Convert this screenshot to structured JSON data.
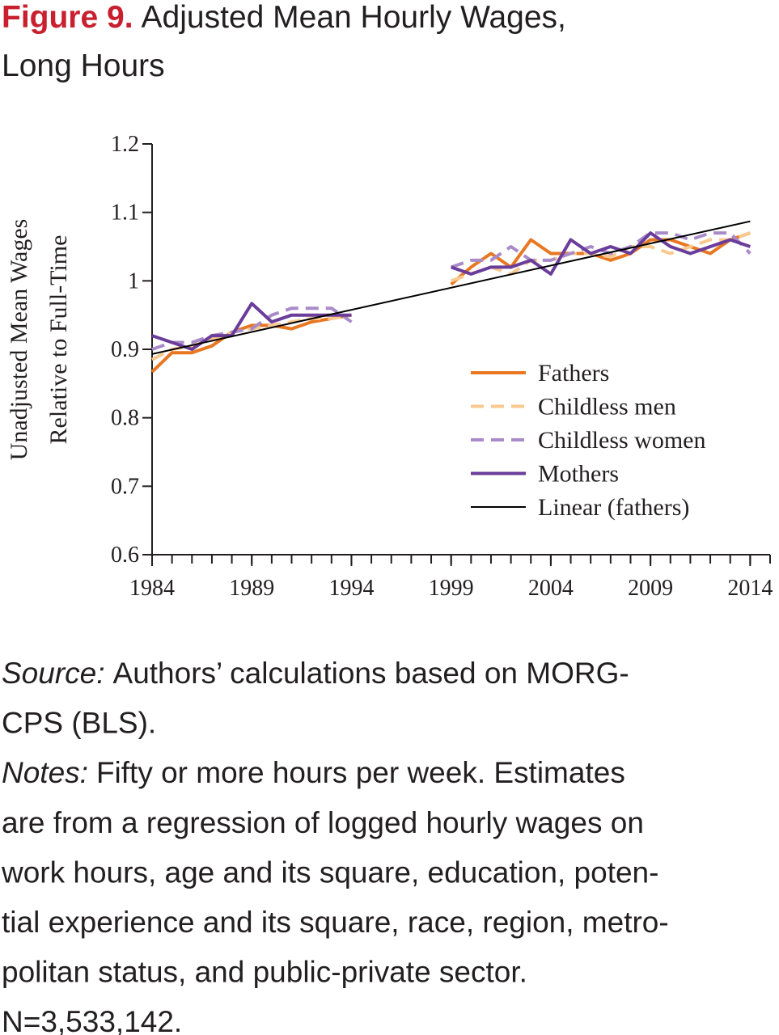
{
  "figure_label": "Figure 9.",
  "title": [
    "Adjusted Mean Hourly Wages,",
    "Long Hours"
  ],
  "chart_data": {
    "type": "line",
    "ylabel": [
      "Unadjusted Mean Wages",
      "Relative to Full-Time"
    ],
    "x": [
      1984,
      1985,
      1986,
      1987,
      1988,
      1989,
      1990,
      1991,
      1992,
      1993,
      1994,
      1995,
      1996,
      1997,
      1998,
      1999,
      2000,
      2001,
      2002,
      2003,
      2004,
      2005,
      2006,
      2007,
      2008,
      2009,
      2010,
      2011,
      2012,
      2013,
      2014
    ],
    "xlim": [
      1984,
      2015
    ],
    "xticks": [
      1984,
      1989,
      1994,
      1999,
      2004,
      2009,
      2014
    ],
    "ylim": [
      0.6,
      1.2
    ],
    "yticks": [
      0.6,
      0.7,
      0.8,
      0.9,
      1,
      1.1,
      1.2
    ],
    "legend": "right",
    "series": [
      {
        "name": "Fathers",
        "color": "#e87722",
        "dash": false,
        "values": [
          0.867,
          0.895,
          0.895,
          0.905,
          0.925,
          0.935,
          0.935,
          0.93,
          0.94,
          0.945,
          0.95,
          null,
          null,
          null,
          null,
          0.995,
          1.02,
          1.04,
          1.02,
          1.06,
          1.04,
          1.04,
          1.04,
          1.03,
          1.04,
          1.06,
          1.06,
          1.05,
          1.04,
          1.06,
          1.07
        ]
      },
      {
        "name": "Childless men",
        "color": "#f9c98f",
        "dash": true,
        "values": [
          0.885,
          0.9,
          0.905,
          0.915,
          0.925,
          0.93,
          0.935,
          0.94,
          0.945,
          0.945,
          0.95,
          null,
          null,
          null,
          null,
          1.0,
          1.01,
          1.02,
          1.01,
          1.03,
          1.03,
          1.04,
          1.04,
          1.035,
          1.05,
          1.05,
          1.04,
          1.05,
          1.06,
          1.06,
          1.07
        ]
      },
      {
        "name": "Childless women",
        "color": "#a98bc9",
        "dash": true,
        "values": [
          0.9,
          0.91,
          0.91,
          0.92,
          0.925,
          0.93,
          0.95,
          0.96,
          0.96,
          0.96,
          0.94,
          null,
          null,
          null,
          null,
          1.02,
          1.03,
          1.03,
          1.05,
          1.03,
          1.03,
          1.04,
          1.05,
          1.04,
          1.05,
          1.07,
          1.07,
          1.06,
          1.07,
          1.07,
          1.04
        ]
      },
      {
        "name": "Mothers",
        "color": "#6a3d9a",
        "dash": false,
        "values": [
          0.92,
          0.91,
          0.9,
          0.92,
          0.92,
          0.967,
          0.94,
          0.95,
          0.95,
          0.95,
          0.95,
          null,
          null,
          null,
          null,
          1.02,
          1.01,
          1.02,
          1.02,
          1.03,
          1.01,
          1.06,
          1.04,
          1.05,
          1.04,
          1.07,
          1.05,
          1.04,
          1.05,
          1.06,
          1.05
        ]
      },
      {
        "name": "Linear (fathers)",
        "color": "#000000",
        "dash": false,
        "thin": true,
        "x": [
          1984,
          2014
        ],
        "values": [
          0.893,
          1.087
        ]
      }
    ]
  },
  "source_label": "Source:",
  "source": [
    "Authors’ calculations based on MORG-",
    "CPS (BLS)."
  ],
  "notes_label": "Notes:",
  "notes": [
    "Fifty or more hours per week. Estimates",
    "are from a regression of logged hourly wages on",
    "work hours, age and its square, education, poten-",
    "tial experience and its square, race, region, metro-",
    "politan status, and public-private sector.",
    "N=3,533,142."
  ]
}
